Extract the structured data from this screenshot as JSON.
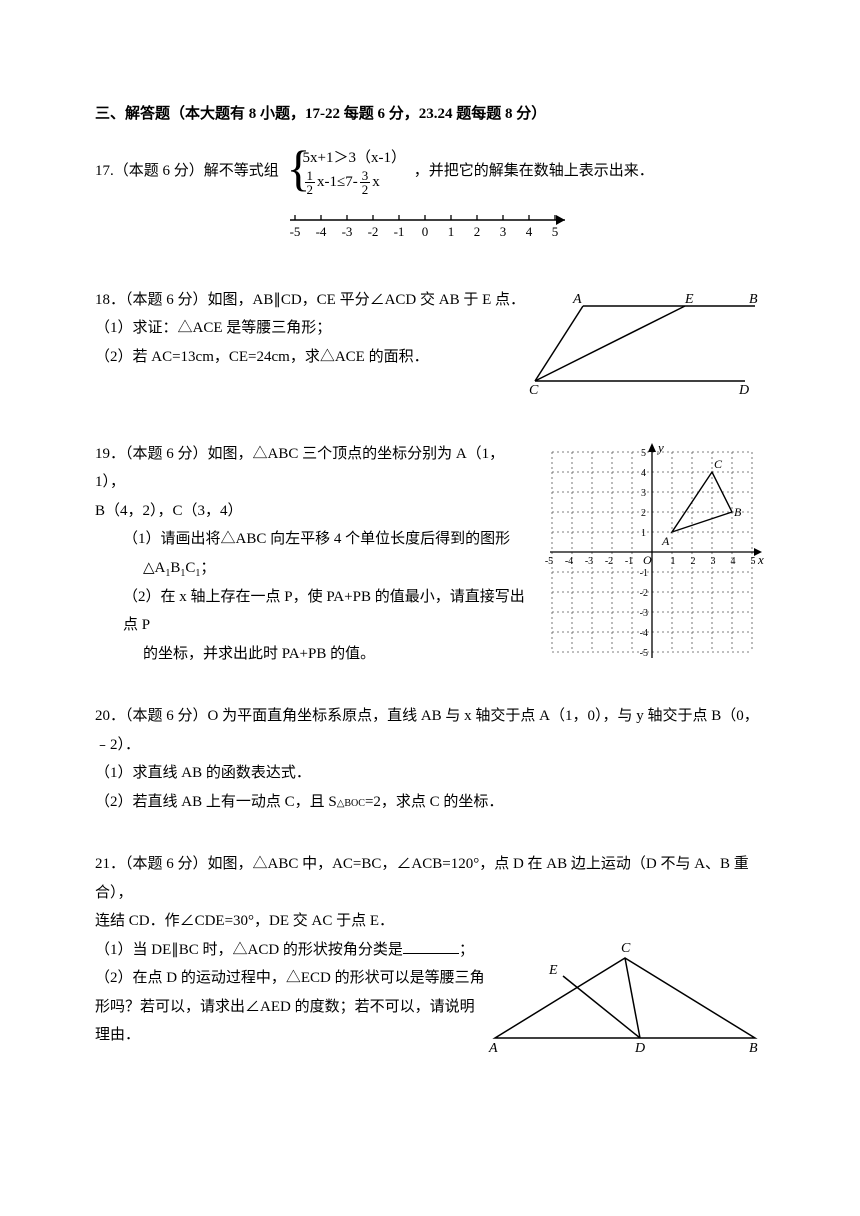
{
  "section": {
    "title": "三、解答题（本大题有 8 小题，17-22 每题 6 分，23.24 题每题 8 分）"
  },
  "q17": {
    "prefix": "17.（本题 6 分）解不等式组",
    "line1_left": "5x+1＞3（x-1）",
    "line2": {
      "f1n": "1",
      "f1d": "2",
      "mid": "x-1≤7-",
      "f2n": "3",
      "f2d": "2",
      "tail": "x"
    },
    "suffix": "，并把它的解集在数轴上表示出来．",
    "numberline_ticks": [
      "-5",
      "-4",
      "-3",
      "-2",
      "-1",
      "0",
      "1",
      "2",
      "3",
      "4",
      "5"
    ]
  },
  "q18": {
    "l1": "18．（本题 6 分）如图，AB∥CD，CE 平分∠ACD 交 AB 于 E 点．",
    "l2": "（1）求证：△ACE 是等腰三角形；",
    "l3": "（2）若 AC=13cm，CE=24cm，求△ACE 的面积．",
    "labels": {
      "A": "A",
      "E": "E",
      "B": "B",
      "C": "C",
      "D": "D"
    }
  },
  "q19": {
    "l1": "19．（本题 6 分）如图，△ABC 三个顶点的坐标分别为 A（1，1），",
    "l1b": "B（4，2），C（3，4）",
    "l2": "（1）请画出将△ABC 向左平移 4 个单位长度后得到的图形",
    "l2b": "△A",
    "l2b_sub1": "1",
    "l2b_mid1": "B",
    "l2b_sub2": "1",
    "l2b_mid2": "C",
    "l2b_sub3": "1",
    "l2b_tail": "；",
    "l3": "（2）在 x 轴上存在一点 P，使 PA+PB 的值最小，请直接写出点 P",
    "l3b": "的坐标，并求出此时 PA+PB 的值。",
    "axis": {
      "x": "x",
      "y": "y",
      "O": "O"
    },
    "pt": {
      "A": "A",
      "B": "B",
      "C": "C"
    },
    "xticks": [
      "-5",
      "-4",
      "-3",
      "-2",
      "-1",
      "1",
      "2",
      "3",
      "4",
      "5"
    ],
    "yticks_pos": [
      "1",
      "2",
      "3",
      "4",
      "5"
    ],
    "yticks_neg": [
      "-1",
      "-2",
      "-3",
      "-4",
      "-5"
    ]
  },
  "q20": {
    "l1": "20．（本题 6 分）O 为平面直角坐标系原点，直线 AB 与 x 轴交于点 A（1，0），与 y 轴交于点 B（0，",
    "l1b": "﹣2）．",
    "l2": "（1）求直线 AB 的函数表达式．",
    "l3a": "（2）若直线 AB 上有一动点 C，且 S",
    "l3_tri": "△BOC",
    "l3b": "=2，求点 C 的坐标．"
  },
  "q21": {
    "l1": "21．（本题 6 分）如图，△ABC 中，AC=BC，∠ACB=120°，点 D 在 AB 边上运动（D 不与 A、B 重合），",
    "l1b": "连结 CD．作∠CDE=30°，DE 交 AC 于点 E．",
    "l2a": "（1）当 DE∥BC 时，△ACD 的形状按角分类是",
    "l2b": "；",
    "l3": "（2）在点 D 的运动过程中，△ECD 的形状可以是等腰三角",
    "l3b": "形吗？若可以，请求出∠AED 的度数；若不可以，请说明",
    "l3c": "理由．",
    "labels": {
      "A": "A",
      "B": "B",
      "C": "C",
      "D": "D",
      "E": "E"
    }
  },
  "style": {
    "text_color": "#000000",
    "bg": "#ffffff",
    "grid_stroke": "#555555",
    "grid_dash": "2,3",
    "axis_stroke": "#000000",
    "line_width": 1.3
  }
}
